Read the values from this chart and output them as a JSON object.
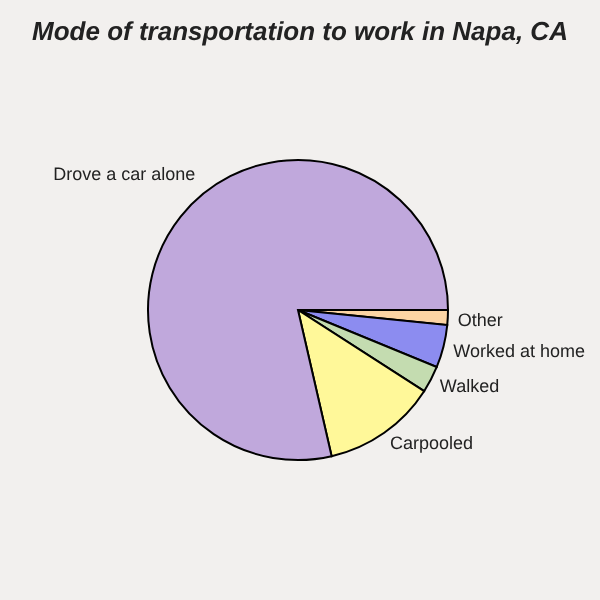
{
  "chart_data": {
    "type": "pie",
    "title": "Mode of transportation to work in Napa, CA",
    "categories": [
      "Other",
      "Worked at home",
      "Walked",
      "Carpooled",
      "Drove a car alone"
    ],
    "values": [
      1.6,
      4.6,
      2.9,
      12.3,
      78.6
    ],
    "colors": [
      "#fcd4a4",
      "#8c8cf0",
      "#c4dcb0",
      "#fff899",
      "#c0a8dc"
    ]
  }
}
